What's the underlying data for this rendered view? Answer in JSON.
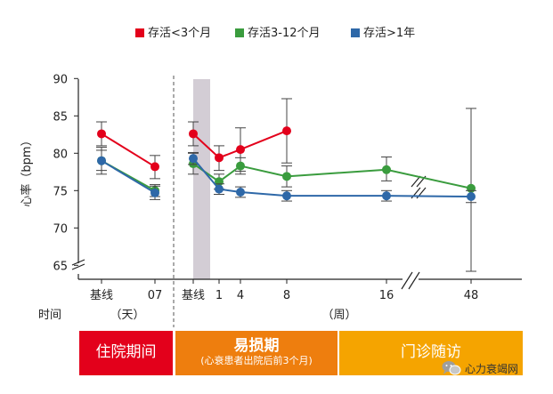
{
  "chart_data": {
    "type": "line",
    "ylabel": "心率（bpm）",
    "yticks": [
      65,
      70,
      75,
      80,
      85,
      90
    ],
    "ylim": [
      63,
      90
    ],
    "x_ticks": [
      {
        "pos": 0,
        "label": "基线"
      },
      {
        "pos": 1,
        "label": "07"
      },
      {
        "pos": 2,
        "label": "基线"
      },
      {
        "pos": 3,
        "label": "1"
      },
      {
        "pos": 4,
        "label": "4"
      },
      {
        "pos": 5,
        "label": "8"
      },
      {
        "pos": 6,
        "label": "16"
      },
      {
        "pos": 7,
        "label": "48"
      }
    ],
    "time_label": "时间",
    "unit_days": "（天）",
    "unit_weeks": "（周）",
    "series": [
      {
        "name": "存活<3个月",
        "color": "#e3001b",
        "segments": [
          [
            {
              "x": 0,
              "y": 82.6,
              "lo": 81.0,
              "hi": 84.2
            },
            {
              "x": 1,
              "y": 78.2,
              "lo": 76.6,
              "hi": 79.7
            }
          ],
          [
            {
              "x": 2,
              "y": 82.6,
              "lo": 81.0,
              "hi": 84.2
            },
            {
              "x": 3,
              "y": 79.4,
              "lo": 77.7,
              "hi": 81.0
            },
            {
              "x": 4,
              "y": 80.5,
              "lo": 77.6,
              "hi": 83.4
            },
            {
              "x": 5,
              "y": 83.0,
              "lo": 78.7,
              "hi": 87.3
            }
          ]
        ]
      },
      {
        "name": "存活3-12个月",
        "color": "#3a9c3e",
        "segments": [
          [
            {
              "x": 0,
              "y": 79.0,
              "lo": 77.7,
              "hi": 80.4
            },
            {
              "x": 1,
              "y": 75.0,
              "lo": 74.2,
              "hi": 75.8
            }
          ],
          [
            {
              "x": 2,
              "y": 78.6,
              "lo": 77.2,
              "hi": 80.0
            },
            {
              "x": 3,
              "y": 76.2,
              "lo": 75.2,
              "hi": 77.2
            },
            {
              "x": 4,
              "y": 78.3,
              "lo": 77.2,
              "hi": 79.4
            },
            {
              "x": 5,
              "y": 76.9,
              "lo": 75.5,
              "hi": 78.3
            },
            {
              "x": 6,
              "y": 77.8,
              "lo": 76.3,
              "hi": 79.5
            },
            {
              "x": 7,
              "y": 75.3,
              "lo": 64.2,
              "hi": 86.0
            }
          ]
        ]
      },
      {
        "name": "存活>1年",
        "color": "#2e68a8",
        "segments": [
          [
            {
              "x": 0,
              "y": 79.0,
              "lo": 77.2,
              "hi": 80.8
            },
            {
              "x": 1,
              "y": 74.7,
              "lo": 73.8,
              "hi": 75.6
            }
          ],
          [
            {
              "x": 2,
              "y": 79.3,
              "lo": 78.5,
              "hi": 80.1
            },
            {
              "x": 3,
              "y": 75.2,
              "lo": 74.5,
              "hi": 75.9
            },
            {
              "x": 4,
              "y": 74.8,
              "lo": 74.1,
              "hi": 75.5
            },
            {
              "x": 5,
              "y": 74.3,
              "lo": 73.6,
              "hi": 75.0
            },
            {
              "x": 6,
              "y": 74.3,
              "lo": 73.6,
              "hi": 75.0
            },
            {
              "x": 7,
              "y": 74.2,
              "lo": 73.4,
              "hi": 75.0
            }
          ]
        ]
      }
    ]
  },
  "periods": {
    "hospital": "住院期间",
    "vulnerable_title": "易损期",
    "vulnerable_sub": "(心衰患者出院后前3个月)",
    "clinic": "门诊随访"
  },
  "colors": {
    "hospital": "#e3001b",
    "vulnerable": "#ee7e0e",
    "clinic": "#f5a400",
    "shade": "#d3cdd5"
  },
  "watermark": {
    "icon": "wechat-icon",
    "text": "心力衰竭网"
  }
}
